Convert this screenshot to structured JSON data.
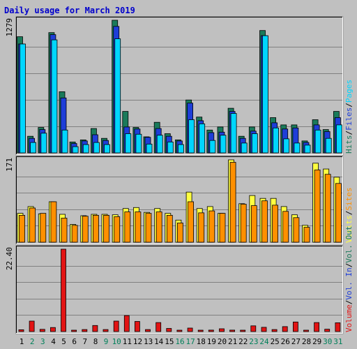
{
  "colors": {
    "background": "#c0c0c0",
    "plot_border": "#000000",
    "hits": "#1a7a5a",
    "files": "#1e3ed8",
    "pages": "#00d6ff",
    "visits": "#ffff40",
    "sites": "#ff9000",
    "kbytes": "#e21414",
    "title": "#0000cc",
    "weekend_day": "#00805a",
    "weekday_day": "#000000"
  },
  "chart_data": {
    "type": "bar",
    "title": "Daily usage for March 2019",
    "categories": [
      "1",
      "2",
      "3",
      "4",
      "5",
      "6",
      "7",
      "8",
      "9",
      "10",
      "11",
      "12",
      "13",
      "14",
      "15",
      "16",
      "17",
      "18",
      "19",
      "20",
      "21",
      "22",
      "23",
      "24",
      "25",
      "26",
      "27",
      "28",
      "29",
      "30",
      "31"
    ],
    "weekend_days": [
      2,
      3,
      9,
      10,
      16,
      17,
      23,
      24,
      30,
      31
    ],
    "panels": [
      {
        "name": "hits_files_pages",
        "ymax_label": "1279",
        "ylim": [
          0,
          1279
        ],
        "legend": [
          {
            "label": "Hits",
            "color": "#1a7a5a"
          },
          {
            "label": "/",
            "color": "#000000"
          },
          {
            "label": "Files",
            "color": "#1e3ed8"
          },
          {
            "label": "/",
            "color": "#000000"
          },
          {
            "label": "Pages",
            "color": "#00d6ff"
          }
        ],
        "series": [
          {
            "name": "Hits",
            "values": [
              1120,
              160,
              245,
              1160,
              590,
              105,
              125,
              235,
              140,
              1279,
              400,
              245,
              155,
              295,
              185,
              125,
              510,
              345,
              220,
              250,
              430,
              160,
              250,
              1180,
              340,
              270,
              270,
              115,
              320,
              225,
              400
            ]
          },
          {
            "name": "Files",
            "values": [
              1050,
              140,
              225,
              1140,
              530,
              90,
              115,
              175,
              120,
              1220,
              250,
              230,
              150,
              235,
              160,
              115,
              480,
              310,
              195,
              200,
              400,
              140,
              210,
              1130,
              290,
              230,
              240,
              100,
              270,
              205,
              340
            ]
          },
          {
            "name": "Pages",
            "values": [
              1050,
              100,
              190,
              1090,
              220,
              60,
              80,
              100,
              80,
              1100,
              185,
              180,
              85,
              170,
              105,
              80,
              320,
              280,
              120,
              170,
              380,
              95,
              185,
              1130,
              240,
              135,
              95,
              75,
              220,
              140,
              270
            ]
          }
        ]
      },
      {
        "name": "visits_sites",
        "ymax_label": "171",
        "ylim": [
          0,
          171
        ],
        "legend": [
          {
            "label": "Visits",
            "color": "#ffff40"
          },
          {
            "label": "/",
            "color": "#000000"
          },
          {
            "label": "Sites",
            "color": "#ff9000"
          }
        ],
        "series": [
          {
            "name": "Visits",
            "values": [
              60,
              74,
              59,
              84,
              58,
              37,
              55,
              58,
              58,
              57,
              70,
              72,
              62,
              70,
              60,
              46,
              104,
              70,
              74,
              60,
              171,
              80,
              97,
              91,
              91,
              74,
              57,
              35,
              164,
              152,
              135
            ]
          },
          {
            "name": "Sites",
            "values": [
              56,
              71,
              60,
              84,
              50,
              35,
              54,
              56,
              56,
              53,
              63,
              63,
              60,
              63,
              56,
              40,
              84,
              61,
              65,
              60,
              166,
              79,
              76,
              86,
              77,
              64,
              51,
              31,
              150,
              141,
              122
            ]
          }
        ]
      },
      {
        "name": "kbytes",
        "ymax_label": "22.40",
        "ylim": [
          0,
          22.4
        ],
        "legend": [
          {
            "label": "Volume",
            "color": "#e21414"
          },
          {
            "label": "/",
            "color": "#000000"
          },
          {
            "label": "Vol. In",
            "color": "#1e3ed8"
          },
          {
            "label": "/",
            "color": "#000000"
          },
          {
            "label": "Vol. Out",
            "color": "#1a7a5a"
          }
        ],
        "series": [
          {
            "name": "Volume",
            "values": [
              0.5,
              2.85,
              0.6,
              1.1,
              22.4,
              0.15,
              0.55,
              1.65,
              0.55,
              2.85,
              4.35,
              2.75,
              0.55,
              2.45,
              0.85,
              0.2,
              0.95,
              0.35,
              0.4,
              0.75,
              0.4,
              0.35,
              1.55,
              1.15,
              0.55,
              1.35,
              2.6,
              0.15,
              2.45,
              0.65,
              2.4
            ]
          }
        ]
      }
    ]
  }
}
